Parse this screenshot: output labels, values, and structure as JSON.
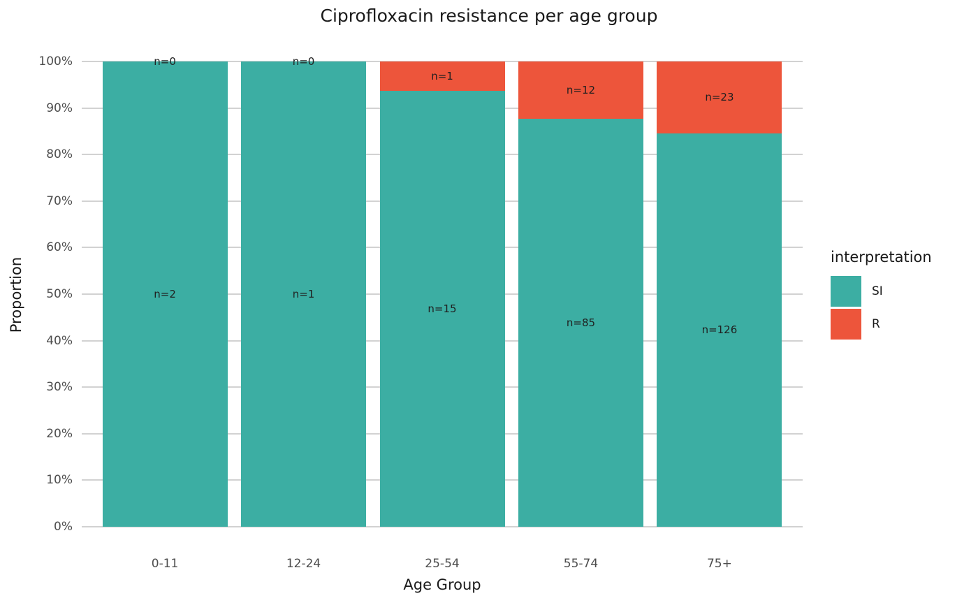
{
  "chart_data": {
    "type": "bar",
    "subtype": "stacked-100-percent",
    "title": "Ciprofloxacin resistance per age group",
    "xlabel": "Age Group",
    "ylabel": "Proportion",
    "categories": [
      "0-11",
      "12-24",
      "25-54",
      "55-74",
      "75+"
    ],
    "series": [
      {
        "name": "SI",
        "color": "#3CAEA3",
        "values": [
          2,
          1,
          15,
          85,
          126
        ]
      },
      {
        "name": "R",
        "color": "#ED553B",
        "values": [
          0,
          0,
          1,
          12,
          23
        ]
      }
    ],
    "stack_order_top_to_bottom": [
      "R",
      "SI"
    ],
    "bar_labels": {
      "R": [
        "n=0",
        "n=0",
        "n=1",
        "n=12",
        "n=23"
      ],
      "SI": [
        "n=2",
        "n=1",
        "n=15",
        "n=85",
        "n=126"
      ]
    },
    "y_ticks": [
      "0%",
      "10%",
      "20%",
      "30%",
      "40%",
      "50%",
      "60%",
      "70%",
      "80%",
      "90%",
      "100%"
    ],
    "ylim": [
      0,
      1
    ],
    "grid": "horizontal-major-only",
    "legend": {
      "title": "interpretation",
      "position": "right",
      "entries": [
        "SI",
        "R"
      ]
    },
    "style_colors": {
      "si_fill": "#3CAEA3",
      "r_fill": "#ED553B",
      "gridline": "#D2D2D2",
      "axis_text": "#4D4D4D",
      "bar_label_text": "#1F1F1F",
      "title_text": "#1A1A1A",
      "background": "#FFFFFF"
    }
  }
}
